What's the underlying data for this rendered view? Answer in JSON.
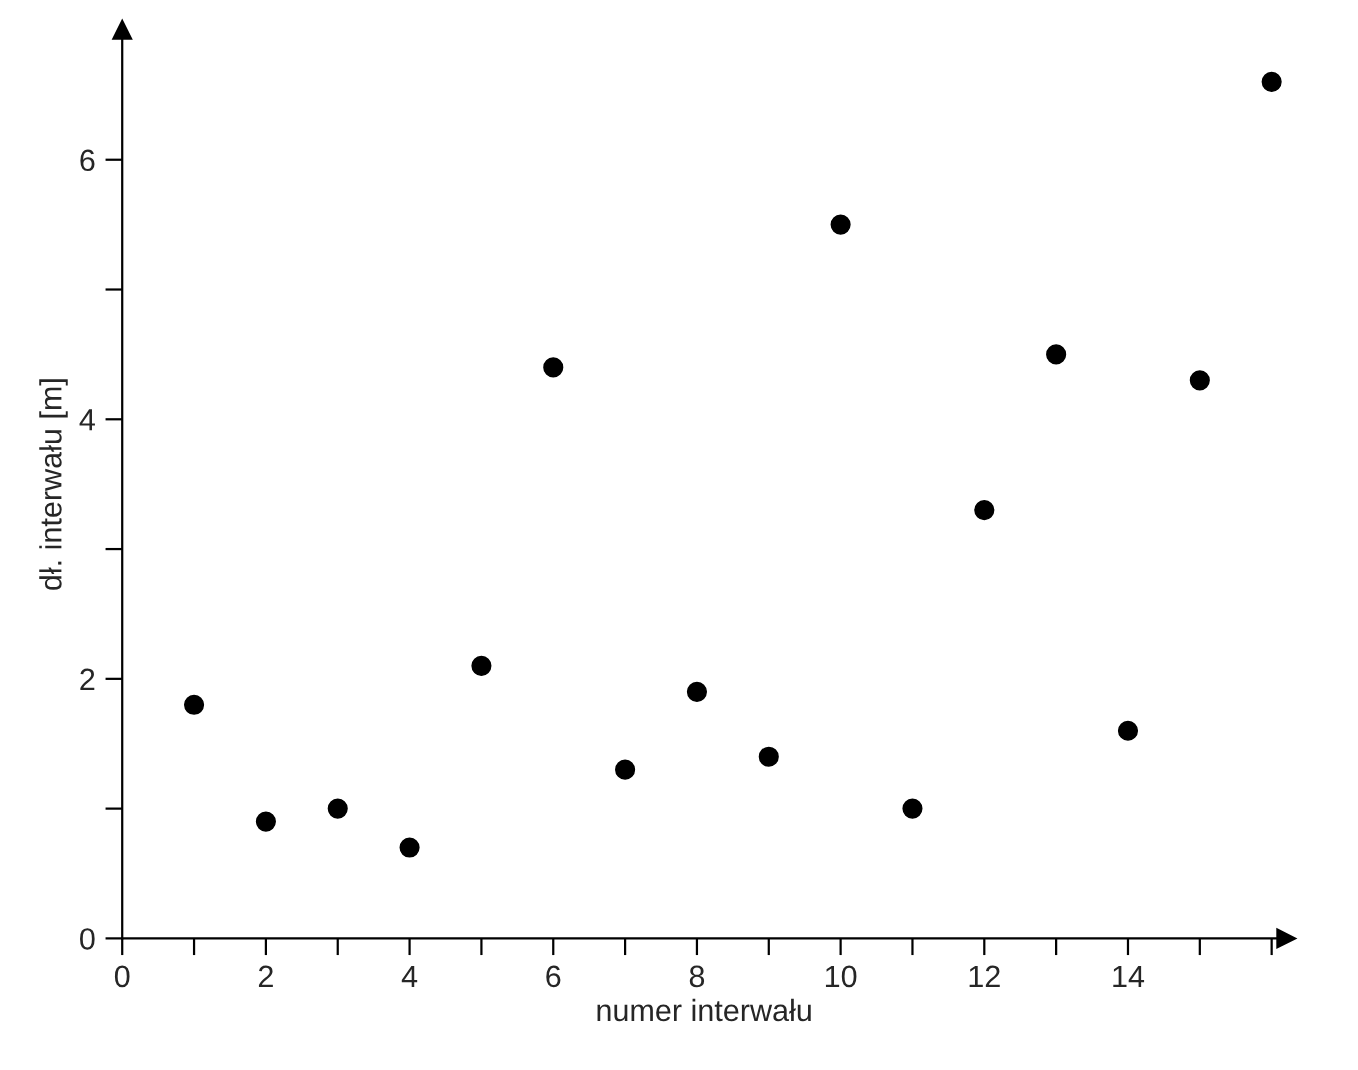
{
  "chart_data": {
    "type": "scatter",
    "xlabel": "numer interwału",
    "ylabel": "dł. interwału [m]",
    "x": [
      1,
      2,
      3,
      4,
      5,
      6,
      7,
      8,
      9,
      10,
      11,
      12,
      13,
      14,
      15,
      16
    ],
    "series": [
      {
        "color": "#000000",
        "values": [
          1.8,
          0.9,
          1.0,
          0.7,
          2.1,
          4.4,
          1.3,
          1.9,
          1.4,
          5.5,
          1.0,
          3.3,
          4.5,
          1.6,
          4.3,
          6.6
        ]
      }
    ],
    "marker": "circle",
    "xlim": [
      0,
      16.2
    ],
    "ylim": [
      0,
      7
    ],
    "xticks": [
      0,
      {
        "value": 1,
        "label": null
      },
      2,
      {
        "value": 3,
        "label": null
      },
      4,
      {
        "value": 5,
        "label": null
      },
      6,
      {
        "value": 7,
        "label": null
      },
      8,
      {
        "value": 9,
        "label": null
      },
      10,
      {
        "value": 11,
        "label": null
      },
      12,
      {
        "value": 13,
        "label": null
      },
      14,
      {
        "value": 15,
        "label": null
      },
      {
        "value": 16,
        "label": null
      }
    ],
    "yticks": [
      0,
      {
        "value": 1,
        "label": null
      },
      2,
      {
        "value": 3,
        "label": null
      },
      4,
      {
        "value": 5,
        "label": null
      },
      6
    ],
    "grid": false,
    "legend": false
  }
}
